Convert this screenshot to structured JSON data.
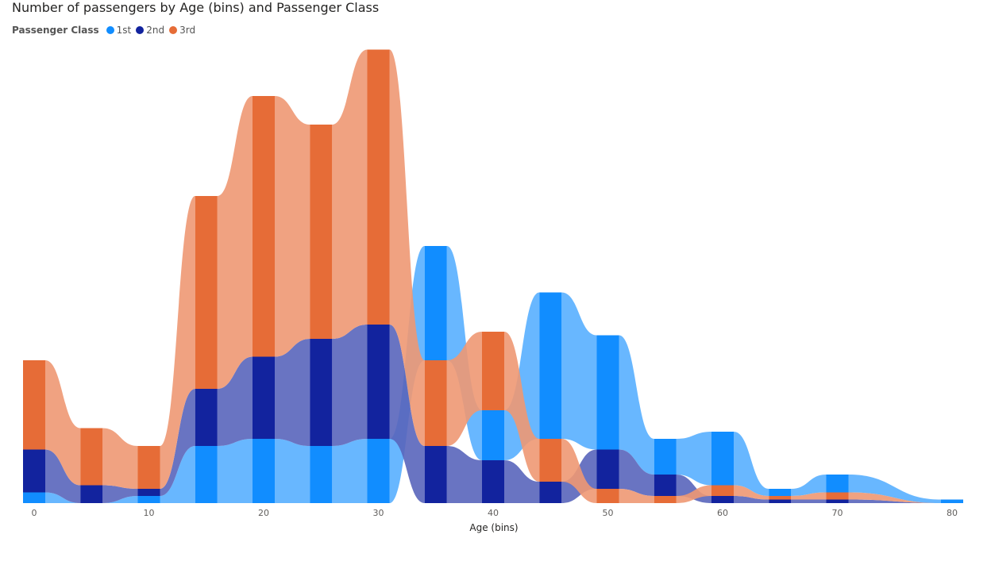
{
  "chart_data": {
    "type": "area",
    "title": "Number of passengers by Age (bins) and Passenger Class",
    "xlabel": "Age (bins)",
    "ylabel": "",
    "legend_title": "Passenger Class",
    "legend_position": "top-left",
    "grid": false,
    "xlim": [
      0,
      80
    ],
    "x_ticks": [
      0,
      10,
      20,
      30,
      40,
      50,
      60,
      70,
      80
    ],
    "x": [
      0,
      5,
      10,
      15,
      20,
      25,
      30,
      35,
      40,
      45,
      50,
      55,
      60,
      65,
      70,
      80
    ],
    "series": [
      {
        "name": "1st",
        "color": "#118DFF",
        "values": [
          3,
          0,
          2,
          16,
          18,
          16,
          18,
          32,
          14,
          41,
          32,
          10,
          15,
          2,
          5,
          1
        ]
      },
      {
        "name": "2nd",
        "color": "#12239E",
        "values": [
          12,
          5,
          2,
          16,
          23,
          30,
          32,
          16,
          12,
          6,
          11,
          6,
          2,
          1,
          1,
          0
        ]
      },
      {
        "name": "3rd",
        "color": "#E66C37",
        "values": [
          25,
          16,
          12,
          54,
          73,
          60,
          77,
          24,
          22,
          12,
          4,
          2,
          3,
          1,
          2,
          0
        ]
      }
    ]
  }
}
